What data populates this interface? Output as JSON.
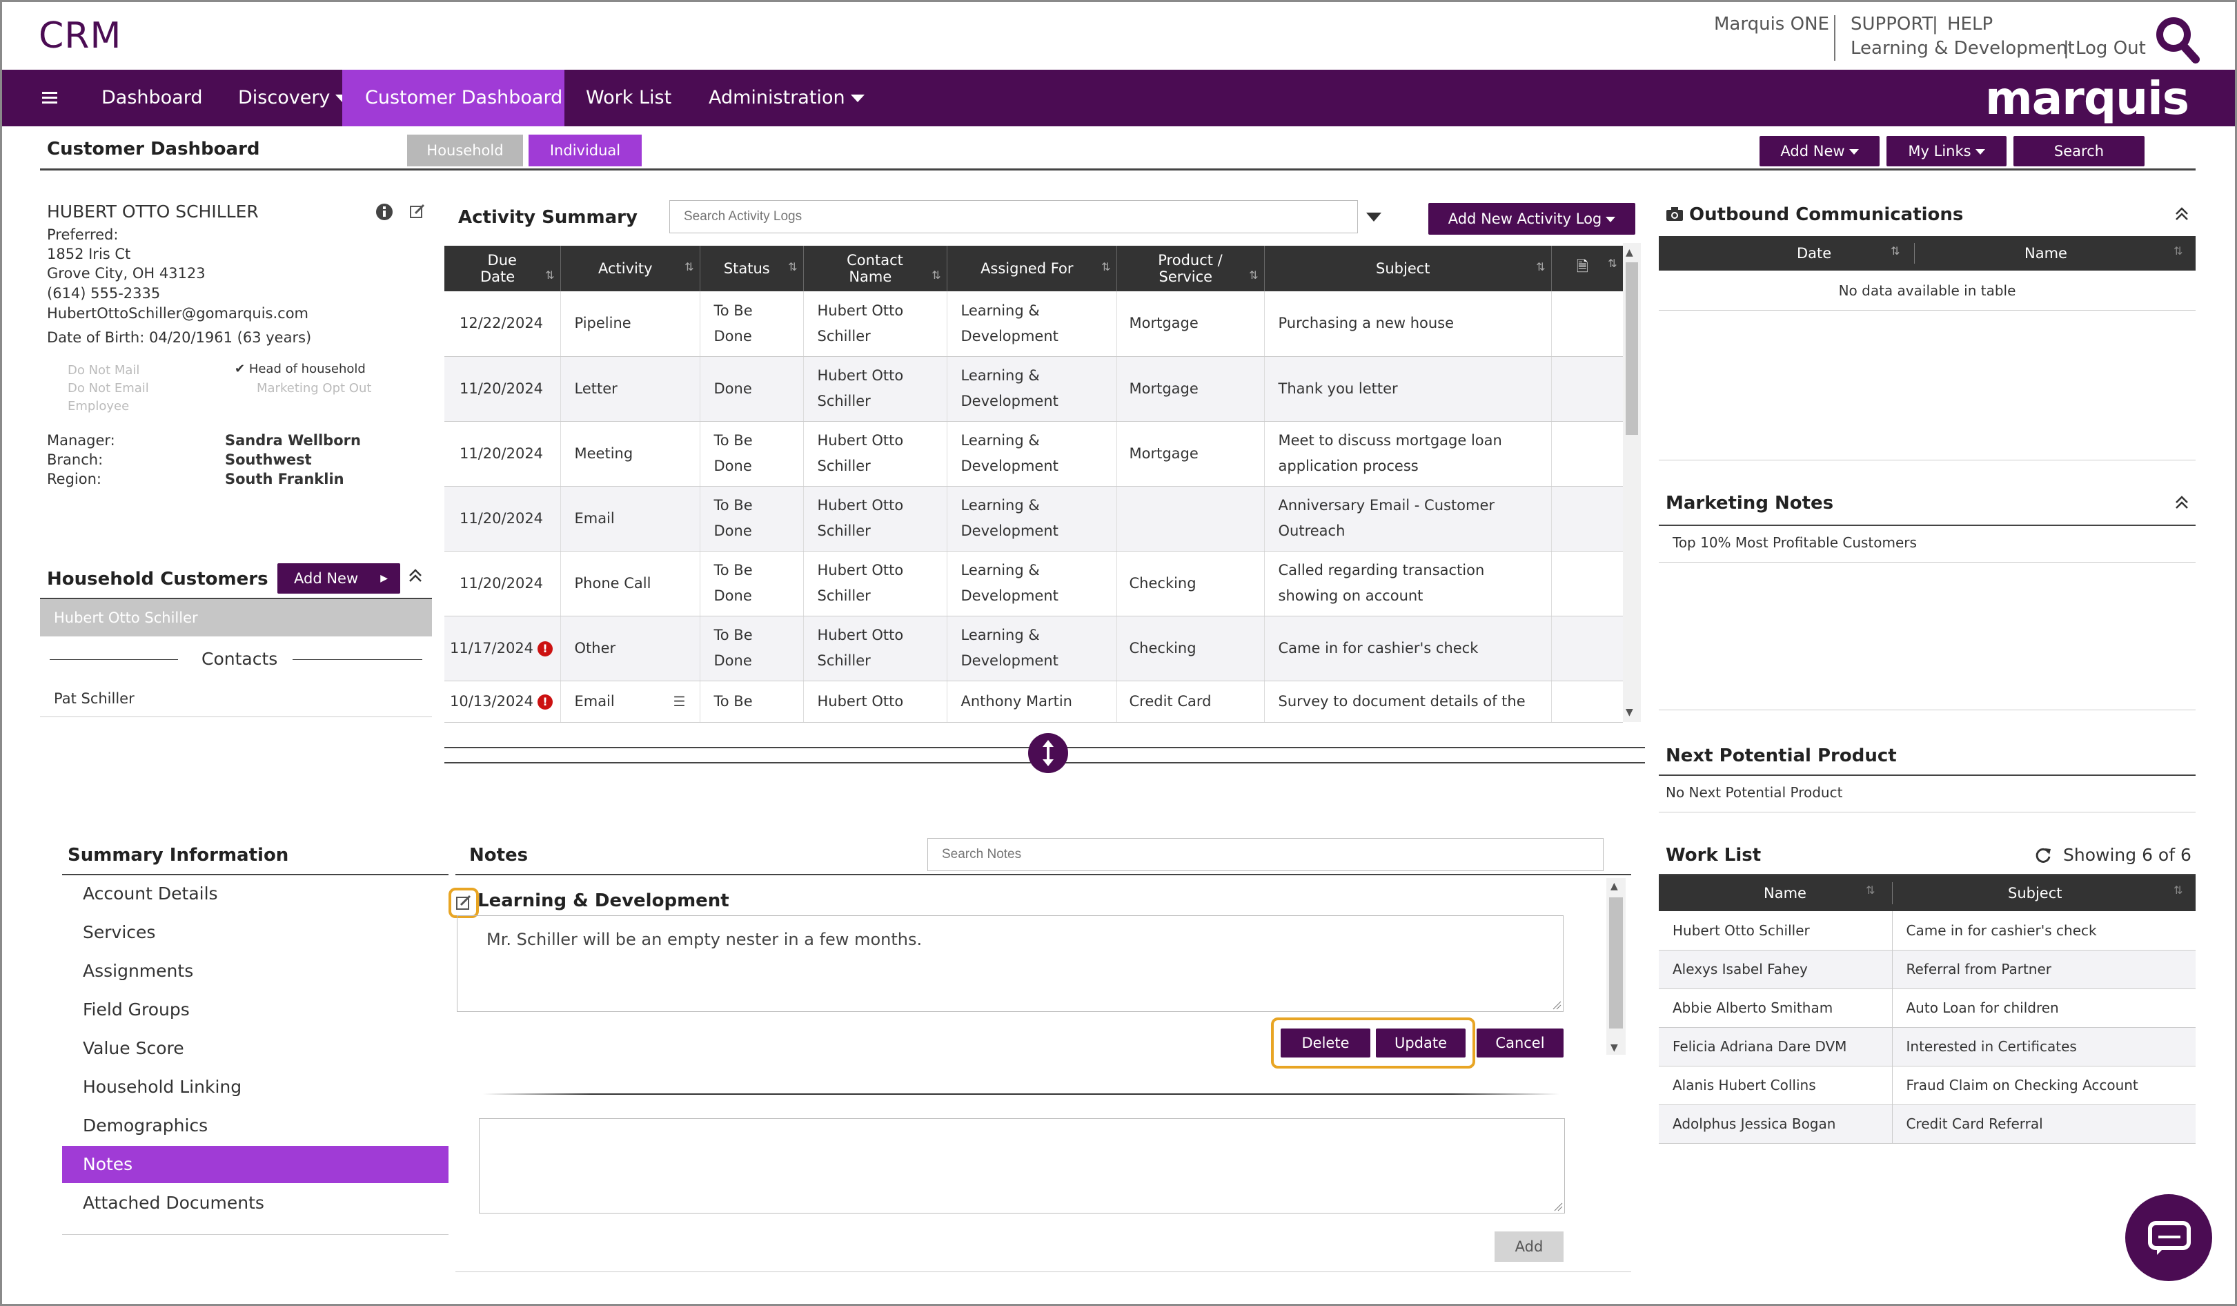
{
  "app": {
    "logo": "CRM",
    "brand": "marquis"
  },
  "top_links": {
    "marquis_one": "Marquis ONE",
    "support": "SUPPORT",
    "help": "HELP",
    "sep": "|",
    "dept": "Learning & Development",
    "logout": "Log Out"
  },
  "nav": {
    "items": [
      {
        "label": "Dashboard"
      },
      {
        "label": "Discovery"
      },
      {
        "label": "Customer Dashboard"
      },
      {
        "label": "Work List"
      },
      {
        "label": "Administration"
      }
    ]
  },
  "subheader": {
    "title": "Customer Dashboard",
    "household": "Household",
    "individual": "Individual",
    "add_new": "Add New",
    "my_links": "My Links",
    "search": "Search"
  },
  "customer": {
    "name": "HUBERT OTTO SCHILLER",
    "preferred": "Preferred:",
    "address1": "1852 Iris Ct",
    "address2": "Grove City, OH 43123",
    "phone": "(614) 555-2335",
    "email": "HubertOttoSchiller@gomarquis.com",
    "dob": "Date of Birth: 04/20/1961 (63 years)",
    "flags": {
      "do_not_mail": "Do Not Mail",
      "do_not_email": "Do Not Email",
      "employee": "Employee",
      "head": "Head of household",
      "opt_out": "Marketing Opt Out"
    },
    "manager_label": "Manager:",
    "manager": "Sandra Wellborn",
    "branch_label": "Branch:",
    "branch": "Southwest",
    "region_label": "Region:",
    "region": "South Franklin"
  },
  "household": {
    "title": "Household Customers",
    "add_new": "Add New",
    "selected": "Hubert Otto Schiller",
    "contacts_label": "Contacts",
    "contact": "Pat Schiller"
  },
  "activity": {
    "title": "Activity Summary",
    "search_placeholder": "Search Activity Logs",
    "add_button": "Add New Activity Log",
    "headers": {
      "due1": "Due",
      "due2": "Date",
      "activity": "Activity",
      "status": "Status",
      "contact1": "Contact",
      "contact2": "Name",
      "assigned": "Assigned For",
      "product1": "Product /",
      "product2": "Service",
      "subject": "Subject"
    },
    "rows": [
      {
        "date": "12/22/2024",
        "activity": "Pipeline",
        "status": "To Be Done",
        "contact": "Hubert Otto Schiller",
        "assigned": "Learning & Development",
        "product": "Mortgage",
        "subject": "Purchasing a new house"
      },
      {
        "date": "11/20/2024",
        "activity": "Letter",
        "status": "Done",
        "contact": "Hubert Otto Schiller",
        "assigned": "Learning & Development",
        "product": "Mortgage",
        "subject": "Thank you letter"
      },
      {
        "date": "11/20/2024",
        "activity": "Meeting",
        "status": "To Be Done",
        "contact": "Hubert Otto Schiller",
        "assigned": "Learning & Development",
        "product": "Mortgage",
        "subject": "Meet to discuss mortgage loan application process"
      },
      {
        "date": "11/20/2024",
        "activity": "Email",
        "status": "To Be Done",
        "contact": "Hubert Otto Schiller",
        "assigned": "Learning & Development",
        "product": "",
        "subject": "Anniversary Email - Customer Outreach"
      },
      {
        "date": "11/20/2024",
        "activity": "Phone Call",
        "status": "To Be Done",
        "contact": "Hubert Otto Schiller",
        "assigned": "Learning & Development",
        "product": "Checking",
        "subject": "Called regarding transaction showing on account"
      },
      {
        "date": "11/17/2024",
        "activity": "Other",
        "status": "To Be Done",
        "contact": "Hubert Otto Schiller",
        "assigned": "Learning & Development",
        "product": "Checking",
        "subject": "Came in for cashier's check"
      },
      {
        "date": "10/13/2024",
        "activity": "Email",
        "status": "To Be",
        "contact": "Hubert Otto",
        "assigned": "Anthony Martin",
        "product": "Credit Card",
        "subject": "Survey to document details of the"
      }
    ]
  },
  "outbound": {
    "title": "Outbound Communications",
    "col_date": "Date",
    "col_name": "Name",
    "empty": "No data available in table"
  },
  "marketing": {
    "title": "Marketing Notes",
    "note": "Top 10% Most Profitable Customers"
  },
  "next_product": {
    "title": "Next Potential Product",
    "value": "No Next Potential Product"
  },
  "summary": {
    "title": "Summary Information",
    "items": [
      "Account Details",
      "Services",
      "Assignments",
      "Field Groups",
      "Value Score",
      "Household Linking",
      "Demographics",
      "Notes",
      "Attached Documents"
    ]
  },
  "notes": {
    "title": "Notes",
    "search_placeholder": "Search Notes",
    "note_title": "Learning & Development",
    "note_text": "Mr. Schiller will be an empty nester in a few months.",
    "delete": "Delete",
    "update": "Update",
    "cancel": "Cancel",
    "add": "Add"
  },
  "worklist": {
    "title": "Work List",
    "showing": "Showing 6 of 6",
    "col_name": "Name",
    "col_subject": "Subject",
    "rows": [
      {
        "name": "Hubert Otto Schiller",
        "subject": "Came in for cashier's check"
      },
      {
        "name": "Alexys Isabel Fahey",
        "subject": "Referral from Partner"
      },
      {
        "name": "Abbie Alberto Smitham",
        "subject": "Auto Loan for children"
      },
      {
        "name": "Felicia Adriana Dare DVM",
        "subject": "Interested in Certificates"
      },
      {
        "name": "Alanis Hubert Collins",
        "subject": "Fraud Claim on Checking Account"
      },
      {
        "name": "Adolphus Jessica Bogan",
        "subject": "Credit Card Referral"
      }
    ]
  },
  "colors": {
    "primary": "#4b0c53",
    "accent": "#a03bd6",
    "highlight": "#e8a524",
    "alert": "#cc1111"
  }
}
